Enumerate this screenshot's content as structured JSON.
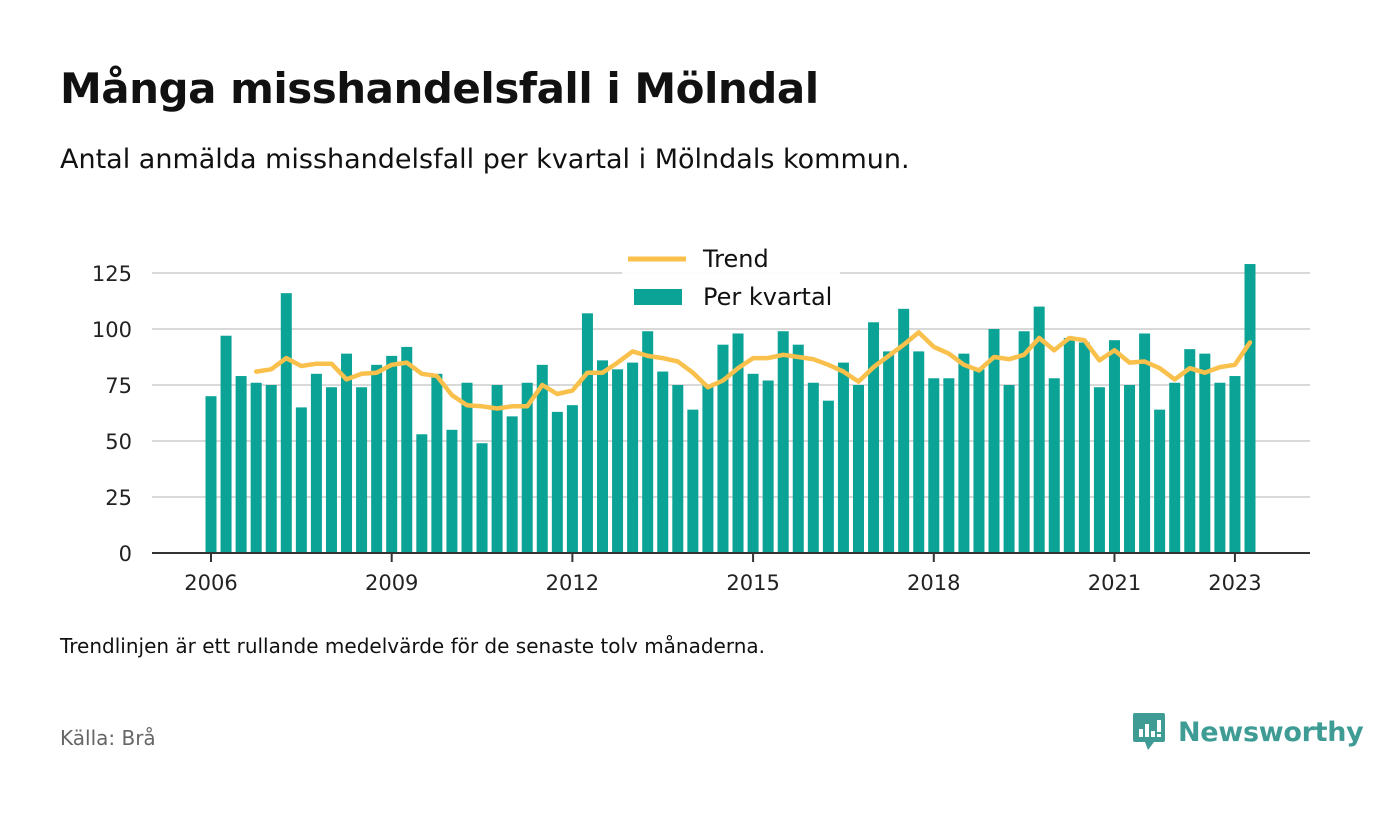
{
  "title": "Många misshandelsfall i Mölndal",
  "subtitle": "Antal anmälda misshandelsfall per kvartal i Mölndals kommun.",
  "note": "Trendlinjen är ett rullande medelvärde för de senaste tolv månaderna.",
  "source": "Källa: Brå",
  "brand": {
    "name": "Newsworthy",
    "icon": "newsworthy-logo-icon",
    "color": "#3f9c95"
  },
  "colors": {
    "bars": "#0aa396",
    "trend": "#f9c04c",
    "grid": "#d9d9d9",
    "axis": "#333333"
  },
  "chart_data": {
    "type": "bar",
    "x_start": "2006 Q1",
    "x_interval": "quarter",
    "x_ticks": [
      "2006",
      "2009",
      "2012",
      "2015",
      "2018",
      "2021",
      "2023"
    ],
    "y_ticks": [
      "0",
      "25",
      "50",
      "75",
      "100",
      "125"
    ],
    "ylim": [
      0,
      125
    ],
    "grid": true,
    "legend": {
      "position": "top-center"
    },
    "series": [
      {
        "name": "Per kvartal",
        "type": "bar",
        "values": [
          70,
          97,
          79,
          76,
          75,
          116,
          65,
          80,
          74,
          89,
          74,
          84,
          88,
          92,
          53,
          80,
          55,
          76,
          49,
          75,
          61,
          76,
          84,
          63,
          66,
          107,
          86,
          82,
          85,
          99,
          81,
          75,
          64,
          75,
          93,
          98,
          80,
          77,
          99,
          93,
          76,
          68,
          85,
          75,
          103,
          90,
          109,
          90,
          78,
          78,
          89,
          82,
          100,
          75,
          99,
          110,
          78,
          96,
          94,
          74,
          95,
          75,
          98,
          64,
          76,
          91,
          89,
          76,
          79,
          129
        ]
      },
      {
        "name": "Trend",
        "type": "line",
        "values": [
          null,
          null,
          null,
          81,
          82,
          87,
          83.5,
          84.5,
          84.5,
          77.5,
          80,
          80.5,
          84,
          85,
          80,
          79,
          70.5,
          66,
          65.5,
          64.5,
          65.5,
          65.5,
          75,
          71,
          72.5,
          80.5,
          80.5,
          85,
          90,
          88,
          87,
          85.5,
          80.5,
          74,
          77,
          82.5,
          87,
          87,
          88.5,
          87.5,
          86.5,
          84,
          81,
          76.5,
          83,
          88,
          93,
          98.5,
          92,
          89,
          84,
          81.5,
          87.5,
          86.5,
          88.5,
          96,
          90.5,
          96,
          95,
          86,
          90.5,
          85,
          85.5,
          82.5,
          77.5,
          82.5,
          80.5,
          83,
          84,
          94
        ]
      }
    ]
  }
}
